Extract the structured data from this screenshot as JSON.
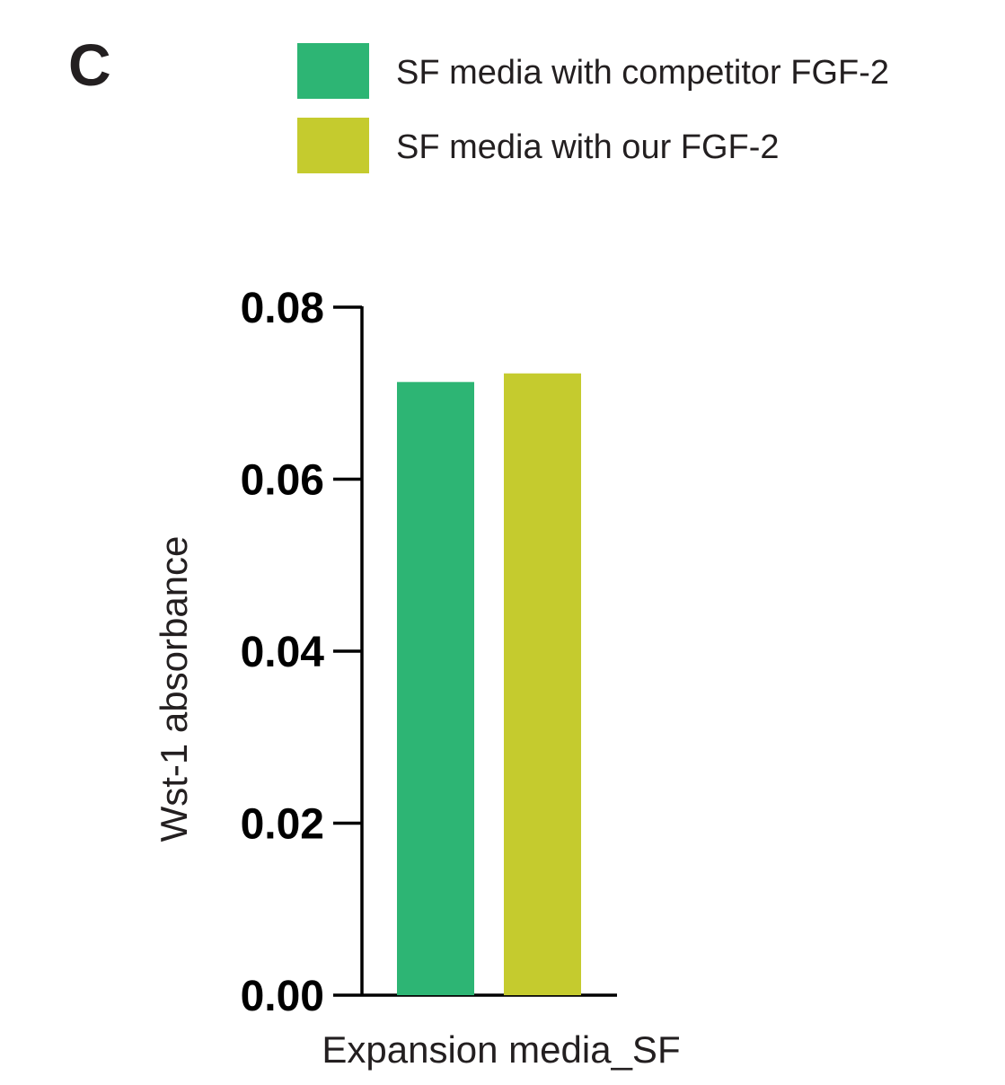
{
  "panel_label": "C",
  "chart_data": {
    "type": "bar",
    "categories": [
      "Expansion media_SF"
    ],
    "series": [
      {
        "name": "SF media with competitor FGF-2",
        "values": [
          0.0713
        ],
        "color": "#2db574"
      },
      {
        "name": "SF media with our FGF-2",
        "values": [
          0.0723
        ],
        "color": "#c5cb2e"
      }
    ],
    "title": "",
    "xlabel": "Expansion media_SF",
    "ylabel": "Wst-1 absorbance",
    "ylim": [
      0,
      0.08
    ],
    "yticks": [
      0.0,
      0.02,
      0.04,
      0.06,
      0.08
    ],
    "ytick_labels": [
      "0.00",
      "0.02",
      "0.04",
      "0.06",
      "0.08"
    ],
    "grid": false,
    "legend_position": "top"
  }
}
